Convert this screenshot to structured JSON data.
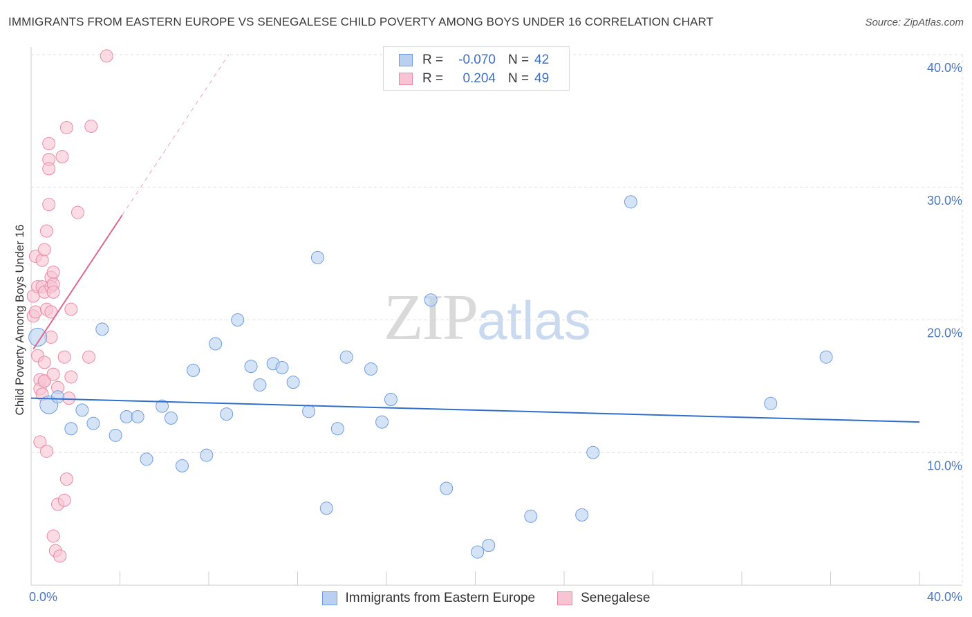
{
  "title": "IMMIGRANTS FROM EASTERN EUROPE VS SENEGALESE CHILD POVERTY AMONG BOYS UNDER 16 CORRELATION CHART",
  "source": "Source: ZipAtlas.com",
  "watermark": {
    "zip": "ZIP",
    "atlas": "atlas"
  },
  "legend": {
    "rows": [
      {
        "r_label": "R =",
        "r_value": "-0.070",
        "n_label": "N =",
        "n_value": "42",
        "fill": "#b9d0f0",
        "stroke": "#6f9de0"
      },
      {
        "r_label": "R =",
        "r_value": "0.204",
        "n_label": "N =",
        "n_value": "49",
        "fill": "#f8c4d4",
        "stroke": "#ec88a8"
      }
    ]
  },
  "bottom_legend": [
    {
      "label": "Immigrants from Eastern Europe",
      "fill": "#b9d0f0",
      "stroke": "#6f9de0"
    },
    {
      "label": "Senegalese",
      "fill": "#f8c4d4",
      "stroke": "#ec88a8"
    }
  ],
  "colors": {
    "blue_fill": "#b9d0f0",
    "blue_stroke": "#6f9de0",
    "blue_line": "#2f6fcb",
    "pink_fill": "#f8c4d4",
    "pink_stroke": "#ec88a8",
    "pink_line": "#e0678f",
    "grid": "#dddddd",
    "axis": "#cccccc"
  },
  "chart_data": {
    "type": "scatter",
    "title": "IMMIGRANTS FROM EASTERN EUROPE VS SENEGALESE CHILD POVERTY AMONG BOYS UNDER 16 CORRELATION CHART",
    "xlabel": "",
    "ylabel": "Child Poverty Among Boys Under 16",
    "xlim": [
      0,
      40
    ],
    "ylim": [
      0,
      40
    ],
    "x_ticks_labels": [
      "0.0%",
      "40.0%"
    ],
    "y_ticks": [
      10,
      20,
      30,
      40
    ],
    "y_tick_labels": [
      "10.0%",
      "20.0%",
      "30.0%",
      "40.0%"
    ],
    "grid": true,
    "legend_position": "top-center",
    "series": [
      {
        "name": "Immigrants from Eastern Europe",
        "trend": {
          "x": [
            0,
            40
          ],
          "y": [
            14.1,
            12.3
          ]
        },
        "points": [
          {
            "x": 0.3,
            "y": 18.7,
            "big": true
          },
          {
            "x": 0.8,
            "y": 13.6,
            "big": true
          },
          {
            "x": 1.2,
            "y": 14.2
          },
          {
            "x": 1.8,
            "y": 11.8
          },
          {
            "x": 2.3,
            "y": 13.2
          },
          {
            "x": 2.8,
            "y": 12.2
          },
          {
            "x": 3.2,
            "y": 19.3
          },
          {
            "x": 3.8,
            "y": 11.3
          },
          {
            "x": 4.3,
            "y": 12.7
          },
          {
            "x": 4.8,
            "y": 12.7
          },
          {
            "x": 5.2,
            "y": 9.5
          },
          {
            "x": 5.9,
            "y": 13.5
          },
          {
            "x": 6.3,
            "y": 12.6
          },
          {
            "x": 6.8,
            "y": 9.0
          },
          {
            "x": 7.3,
            "y": 16.2
          },
          {
            "x": 7.9,
            "y": 9.8
          },
          {
            "x": 8.3,
            "y": 18.2
          },
          {
            "x": 8.8,
            "y": 12.9
          },
          {
            "x": 9.3,
            "y": 20.0
          },
          {
            "x": 9.9,
            "y": 16.5
          },
          {
            "x": 10.3,
            "y": 15.1
          },
          {
            "x": 10.9,
            "y": 16.7
          },
          {
            "x": 11.3,
            "y": 16.4
          },
          {
            "x": 11.8,
            "y": 15.3
          },
          {
            "x": 12.5,
            "y": 13.1
          },
          {
            "x": 12.9,
            "y": 24.7
          },
          {
            "x": 13.3,
            "y": 5.8
          },
          {
            "x": 13.8,
            "y": 11.8
          },
          {
            "x": 14.2,
            "y": 17.2
          },
          {
            "x": 15.3,
            "y": 16.3
          },
          {
            "x": 15.8,
            "y": 12.3
          },
          {
            "x": 16.2,
            "y": 14.0
          },
          {
            "x": 18.0,
            "y": 21.5
          },
          {
            "x": 18.7,
            "y": 7.3
          },
          {
            "x": 20.1,
            "y": 2.5
          },
          {
            "x": 20.6,
            "y": 3.0
          },
          {
            "x": 22.5,
            "y": 5.2
          },
          {
            "x": 24.8,
            "y": 5.3
          },
          {
            "x": 25.3,
            "y": 10.0
          },
          {
            "x": 27.0,
            "y": 28.9
          },
          {
            "x": 33.3,
            "y": 13.7
          },
          {
            "x": 35.8,
            "y": 17.2
          }
        ]
      },
      {
        "name": "Senegalese",
        "trend": {
          "x": [
            0.1,
            4.1
          ],
          "y": [
            17.8,
            27.9
          ]
        },
        "trend_dashed": {
          "x": [
            4.1,
            8.9
          ],
          "y": [
            27.9,
            40
          ]
        },
        "points": [
          {
            "x": 0.1,
            "y": 21.8
          },
          {
            "x": 0.1,
            "y": 20.3
          },
          {
            "x": 0.2,
            "y": 24.8
          },
          {
            "x": 0.2,
            "y": 20.6
          },
          {
            "x": 0.3,
            "y": 17.3
          },
          {
            "x": 0.3,
            "y": 22.5
          },
          {
            "x": 0.4,
            "y": 15.5
          },
          {
            "x": 0.4,
            "y": 14.8
          },
          {
            "x": 0.4,
            "y": 10.8
          },
          {
            "x": 0.5,
            "y": 24.5
          },
          {
            "x": 0.5,
            "y": 22.5
          },
          {
            "x": 0.5,
            "y": 14.4
          },
          {
            "x": 0.6,
            "y": 25.3
          },
          {
            "x": 0.6,
            "y": 22.1
          },
          {
            "x": 0.6,
            "y": 16.8
          },
          {
            "x": 0.6,
            "y": 15.4
          },
          {
            "x": 0.6,
            "y": 15.4
          },
          {
            "x": 0.7,
            "y": 26.7
          },
          {
            "x": 0.7,
            "y": 20.8
          },
          {
            "x": 0.7,
            "y": 10.1
          },
          {
            "x": 0.8,
            "y": 28.7
          },
          {
            "x": 0.8,
            "y": 32.1
          },
          {
            "x": 0.8,
            "y": 31.4
          },
          {
            "x": 0.8,
            "y": 33.3
          },
          {
            "x": 0.9,
            "y": 23.2
          },
          {
            "x": 0.9,
            "y": 22.5
          },
          {
            "x": 0.9,
            "y": 20.6
          },
          {
            "x": 0.9,
            "y": 18.7
          },
          {
            "x": 1.0,
            "y": 23.6
          },
          {
            "x": 1.0,
            "y": 22.7
          },
          {
            "x": 1.0,
            "y": 22.1
          },
          {
            "x": 1.0,
            "y": 15.9
          },
          {
            "x": 1.0,
            "y": 3.7
          },
          {
            "x": 1.1,
            "y": 2.6
          },
          {
            "x": 1.2,
            "y": 6.1
          },
          {
            "x": 1.2,
            "y": 14.9
          },
          {
            "x": 1.3,
            "y": 2.2
          },
          {
            "x": 1.4,
            "y": 32.3
          },
          {
            "x": 1.5,
            "y": 6.4
          },
          {
            "x": 1.5,
            "y": 17.2
          },
          {
            "x": 1.6,
            "y": 34.5
          },
          {
            "x": 1.7,
            "y": 14.1
          },
          {
            "x": 1.8,
            "y": 15.7
          },
          {
            "x": 1.8,
            "y": 20.8
          },
          {
            "x": 1.6,
            "y": 8.0
          },
          {
            "x": 2.1,
            "y": 28.1
          },
          {
            "x": 2.6,
            "y": 17.2
          },
          {
            "x": 2.7,
            "y": 34.6
          },
          {
            "x": 3.4,
            "y": 39.9
          }
        ]
      }
    ]
  }
}
